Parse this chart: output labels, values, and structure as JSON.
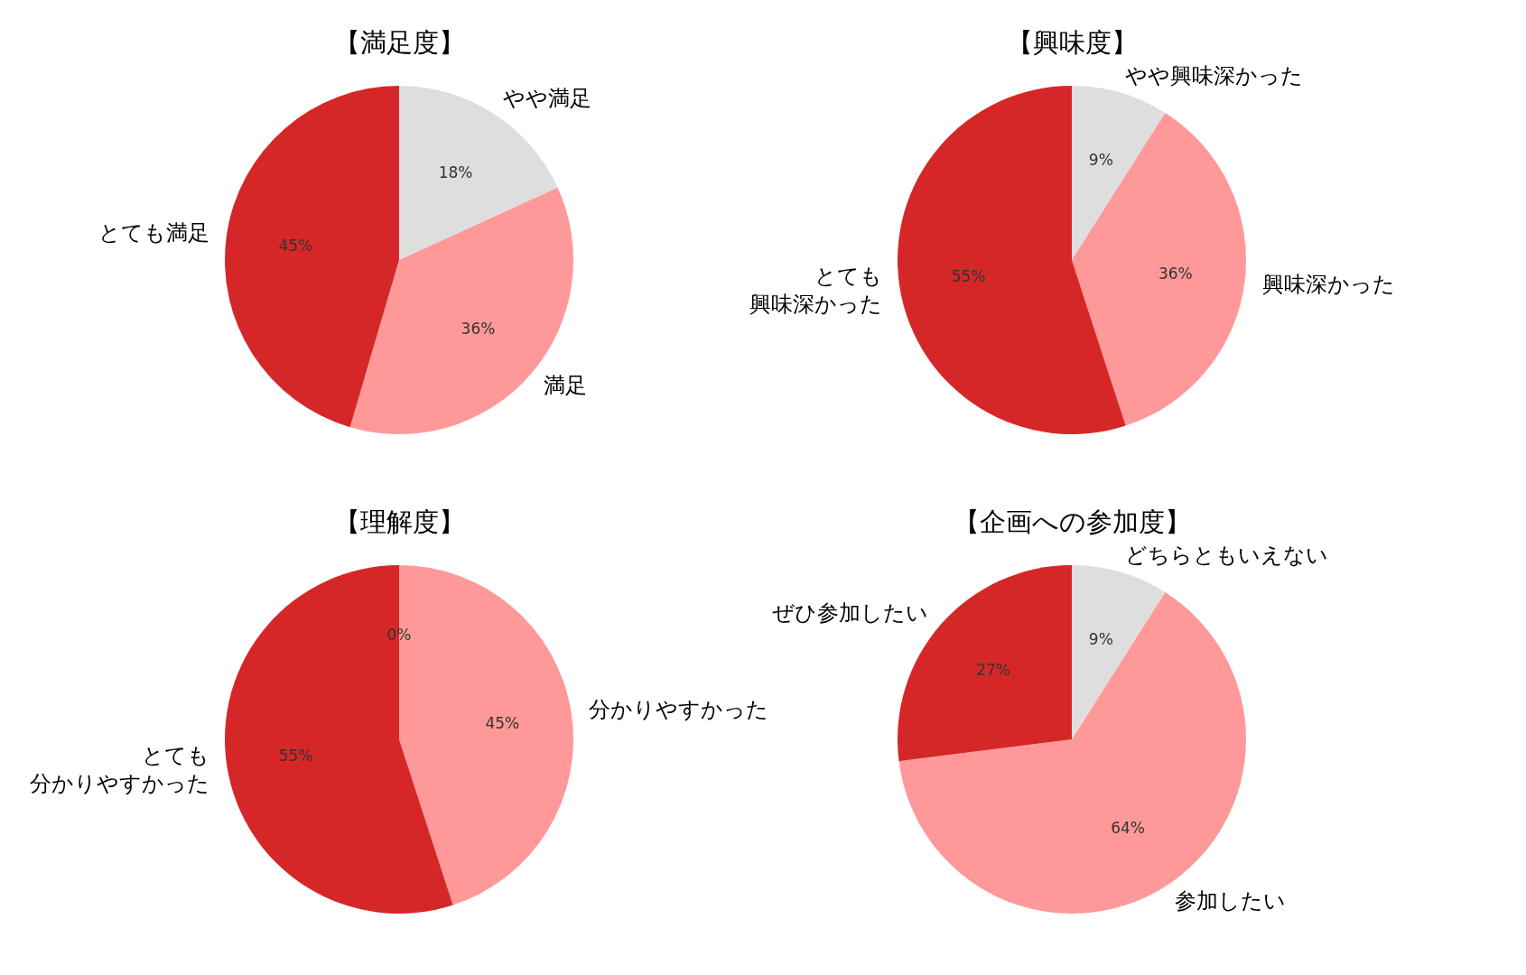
{
  "chart_data": [
    {
      "type": "pie",
      "title": "【満足度】",
      "categories": [
        "やや満足",
        "満足",
        "とても満足"
      ],
      "values": [
        18,
        36,
        45
      ],
      "value_labels": [
        "18%",
        "36%",
        "45%"
      ],
      "colors": [
        "#dedede",
        "#ff9999",
        "#d62728"
      ],
      "legend": false
    },
    {
      "type": "pie",
      "title": "【興味度】",
      "categories": [
        "やや興味深かった",
        "興味深かった",
        "とても興味深かった"
      ],
      "values": [
        9,
        36,
        55
      ],
      "value_labels": [
        "9%",
        "36%",
        "55%"
      ],
      "colors": [
        "#dedede",
        "#ff9999",
        "#d62728"
      ],
      "legend": false
    },
    {
      "type": "pie",
      "title": "【理解度】",
      "categories": [
        null,
        "分かりやすかった",
        "とても分かりやすかった"
      ],
      "values": [
        0,
        45,
        55
      ],
      "value_labels": [
        "0%",
        "45%",
        "55%"
      ],
      "colors": [
        "#dedede",
        "#ff9999",
        "#d62728"
      ],
      "legend": false
    },
    {
      "type": "pie",
      "title": "【企画への参加度】",
      "categories": [
        "どちらともいえない",
        "参加したい",
        "ぜひ参加したい"
      ],
      "values": [
        9,
        64,
        27
      ],
      "value_labels": [
        "9%",
        "64%",
        "27%"
      ],
      "colors": [
        "#dedede",
        "#ff9999",
        "#d62728"
      ],
      "legend": false
    }
  ]
}
